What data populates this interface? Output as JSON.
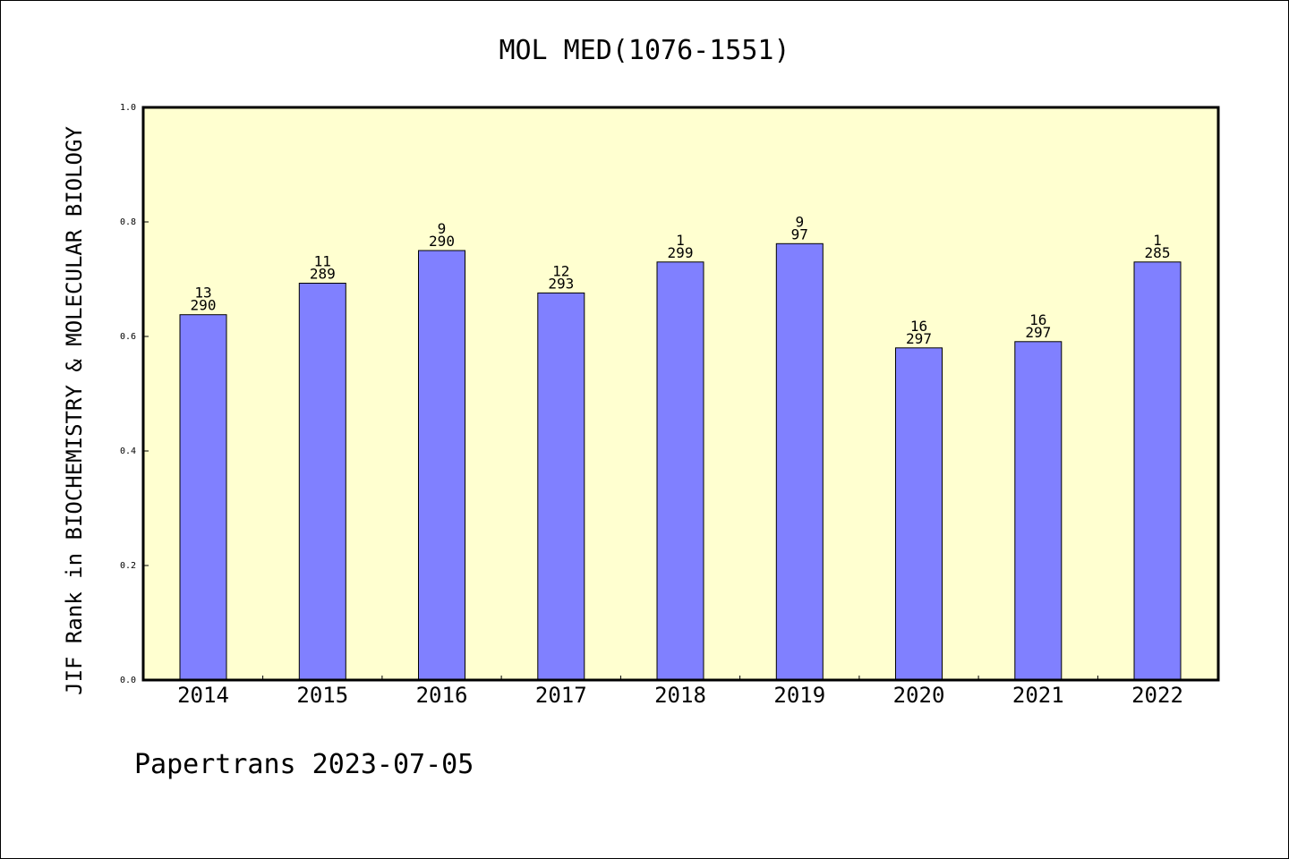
{
  "chart_data": {
    "type": "bar",
    "title": "MOL MED(1076-1551)",
    "xlabel": "",
    "ylabel": "JIF Rank in BIOCHEMISTRY & MOLECULAR BIOLOGY",
    "categories": [
      "2014",
      "2015",
      "2016",
      "2017",
      "2018",
      "2019",
      "2020",
      "2021",
      "2022"
    ],
    "values": [
      0.638,
      0.693,
      0.75,
      0.676,
      0.73,
      0.762,
      0.58,
      0.591,
      0.73
    ],
    "bar_labels": [
      [
        "13",
        "290"
      ],
      [
        "11",
        "289"
      ],
      [
        "9",
        "290"
      ],
      [
        "12",
        "293"
      ],
      [
        "1",
        "299"
      ],
      [
        "9",
        "97"
      ],
      [
        "16",
        "297"
      ],
      [
        "16",
        "297"
      ],
      [
        "1",
        "285"
      ]
    ],
    "ylim": [
      0.0,
      1.0
    ],
    "yticks": [
      "0.0",
      "0.2",
      "0.4",
      "0.6",
      "0.8",
      "1.0"
    ],
    "grid": false,
    "colors": {
      "bar_fill": "#8080ff",
      "plot_background": "#ffffd0",
      "axis": "#000000"
    }
  },
  "footer": "Papertrans 2023-07-05"
}
